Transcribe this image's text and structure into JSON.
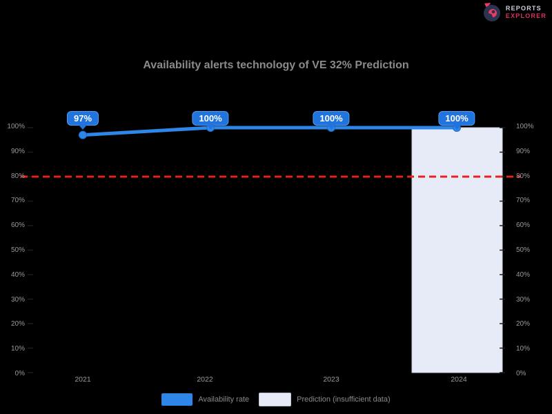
{
  "logo": {
    "line1": "REPORTS",
    "line2": "EXPLORER"
  },
  "title": "Availability alerts technology of VE 32% Prediction",
  "chart_data": {
    "type": "line",
    "title": "Availability alerts technology of VE 32% Prediction",
    "categories": [
      "2021",
      "2022",
      "2023",
      "2024"
    ],
    "series": [
      {
        "name": "Availability rate",
        "values": [
          97,
          100,
          100,
          100
        ],
        "color": "#2e86e8"
      }
    ],
    "point_labels": [
      "97%",
      "100%",
      "100%",
      "100%"
    ],
    "target_line": {
      "value": 80,
      "color": "#e32413",
      "style": "dashed"
    },
    "prediction_band": {
      "category": "2024",
      "color": "#e7ebf8",
      "border": "#c9cfdf"
    },
    "ylim": [
      0,
      100
    ],
    "y_ticks_left": [
      "100%",
      "90%",
      "80%",
      "70%",
      "60%",
      "50%",
      "40%",
      "30%",
      "20%",
      "10%",
      "0%"
    ],
    "y_ticks_right": [
      "100%",
      "90%",
      "80%",
      "70%",
      "60%",
      "50%",
      "40%",
      "30%",
      "20%",
      "10%",
      "0%"
    ],
    "grid": false,
    "legend_position": "bottom",
    "legend": [
      {
        "label": "Availability rate",
        "color": "#2e86e8"
      },
      {
        "label": "Prediction (insufficient data)",
        "color": "#e7ebf8"
      }
    ]
  },
  "colors": {
    "background": "#000000",
    "title_text": "#8a8a8a",
    "axis_text": "#9a9a9a",
    "line": "#2e86e8",
    "tooltip_bg": "#2173de",
    "target_red": "#e32413",
    "band_fill": "#e7ebf8"
  }
}
